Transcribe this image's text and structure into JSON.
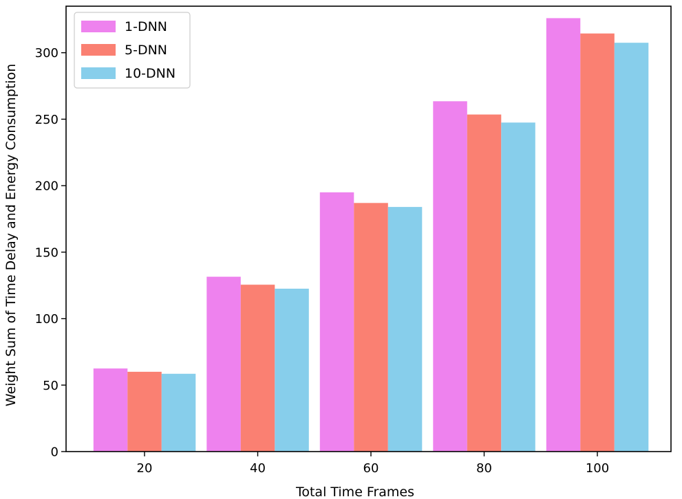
{
  "chart_data": {
    "type": "bar",
    "title": "",
    "xlabel": "Total Time Frames",
    "ylabel": "Weight Sum of Time Delay and Energy Consumption",
    "categories": [
      "20",
      "40",
      "60",
      "80",
      "100"
    ],
    "series": [
      {
        "name": "1-DNN",
        "color": "#ee82ee",
        "values": [
          62.5,
          131.5,
          195,
          263.5,
          326
        ]
      },
      {
        "name": "5-DNN",
        "color": "#fa8072",
        "values": [
          60,
          125.5,
          187,
          253.5,
          314.5
        ]
      },
      {
        "name": "10-DNN",
        "color": "#87ceeb",
        "values": [
          58.5,
          122.5,
          184,
          247.5,
          307.5
        ]
      }
    ],
    "ylim": [
      0,
      335
    ],
    "yticks": [
      0,
      50,
      100,
      150,
      200,
      250,
      300
    ],
    "grid": false,
    "legend_position": "top-left"
  }
}
